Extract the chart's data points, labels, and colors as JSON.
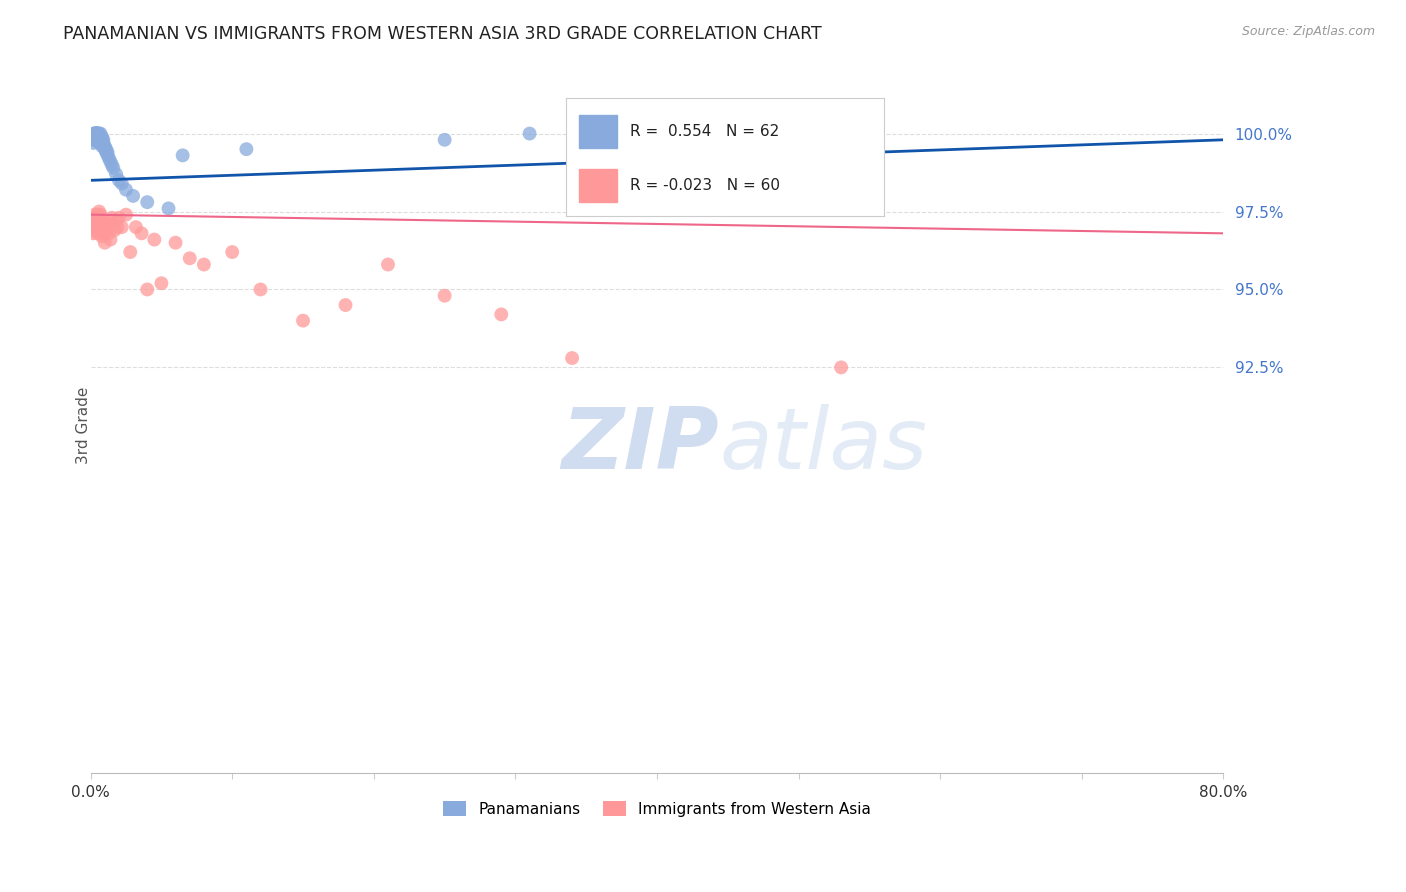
{
  "title": "PANAMANIAN VS IMMIGRANTS FROM WESTERN ASIA 3RD GRADE CORRELATION CHART",
  "source": "Source: ZipAtlas.com",
  "ylabel": "3rd Grade",
  "xlim": [
    0.0,
    0.8
  ],
  "ylim": [
    79.5,
    101.8
  ],
  "legend_r_blue": "0.554",
  "legend_n_blue": "62",
  "legend_r_pink": "-0.023",
  "legend_n_pink": "60",
  "blue_color": "#88AADD",
  "pink_color": "#FF9999",
  "trend_blue": "#1155AA",
  "trend_pink": "#EE6688",
  "watermark_zip": "ZIP",
  "watermark_atlas": "atlas",
  "ytick_vals": [
    92.5,
    95.0,
    97.5,
    100.0
  ],
  "blue_x": [
    0.001,
    0.002,
    0.002,
    0.002,
    0.003,
    0.003,
    0.003,
    0.003,
    0.003,
    0.004,
    0.004,
    0.004,
    0.004,
    0.004,
    0.004,
    0.004,
    0.005,
    0.005,
    0.005,
    0.005,
    0.005,
    0.005,
    0.005,
    0.006,
    0.006,
    0.006,
    0.006,
    0.006,
    0.007,
    0.007,
    0.007,
    0.007,
    0.007,
    0.008,
    0.008,
    0.008,
    0.008,
    0.009,
    0.009,
    0.01,
    0.01,
    0.011,
    0.011,
    0.012,
    0.012,
    0.013,
    0.014,
    0.015,
    0.016,
    0.018,
    0.02,
    0.022,
    0.025,
    0.03,
    0.04,
    0.055,
    0.065,
    0.11,
    0.25,
    0.31,
    0.38,
    0.46
  ],
  "blue_y": [
    99.9,
    100.0,
    99.8,
    99.7,
    100.0,
    100.0,
    100.0,
    99.9,
    99.8,
    100.0,
    100.0,
    100.0,
    100.0,
    100.0,
    99.9,
    99.8,
    100.0,
    100.0,
    100.0,
    100.0,
    99.9,
    99.9,
    99.8,
    100.0,
    99.9,
    99.9,
    99.8,
    99.7,
    100.0,
    99.9,
    99.9,
    99.8,
    99.7,
    99.9,
    99.8,
    99.7,
    99.6,
    99.8,
    99.7,
    99.6,
    99.5,
    99.5,
    99.4,
    99.4,
    99.3,
    99.2,
    99.1,
    99.0,
    98.9,
    98.7,
    98.5,
    98.4,
    98.2,
    98.0,
    97.8,
    97.6,
    99.3,
    99.5,
    99.8,
    100.0,
    99.7,
    99.6
  ],
  "pink_x": [
    0.001,
    0.001,
    0.002,
    0.002,
    0.002,
    0.003,
    0.003,
    0.003,
    0.004,
    0.004,
    0.004,
    0.005,
    0.005,
    0.005,
    0.005,
    0.006,
    0.006,
    0.006,
    0.006,
    0.007,
    0.007,
    0.007,
    0.008,
    0.008,
    0.008,
    0.009,
    0.009,
    0.01,
    0.01,
    0.011,
    0.011,
    0.012,
    0.013,
    0.014,
    0.015,
    0.016,
    0.017,
    0.018,
    0.019,
    0.02,
    0.022,
    0.025,
    0.028,
    0.032,
    0.036,
    0.04,
    0.045,
    0.05,
    0.06,
    0.07,
    0.08,
    0.1,
    0.12,
    0.15,
    0.18,
    0.21,
    0.25,
    0.29,
    0.34,
    0.53
  ],
  "pink_y": [
    97.3,
    97.1,
    97.2,
    97.0,
    96.8,
    97.4,
    97.2,
    97.0,
    97.3,
    97.1,
    96.9,
    97.4,
    97.2,
    97.0,
    96.8,
    97.5,
    97.3,
    97.1,
    96.9,
    97.4,
    97.2,
    97.0,
    97.1,
    96.9,
    96.7,
    97.0,
    96.8,
    97.2,
    96.5,
    97.1,
    96.9,
    97.0,
    96.8,
    96.6,
    97.3,
    97.1,
    96.9,
    97.2,
    97.0,
    97.3,
    97.0,
    97.4,
    96.2,
    97.0,
    96.8,
    95.0,
    96.6,
    95.2,
    96.5,
    96.0,
    95.8,
    96.2,
    95.0,
    94.0,
    94.5,
    95.8,
    94.8,
    94.2,
    92.8,
    92.5
  ]
}
